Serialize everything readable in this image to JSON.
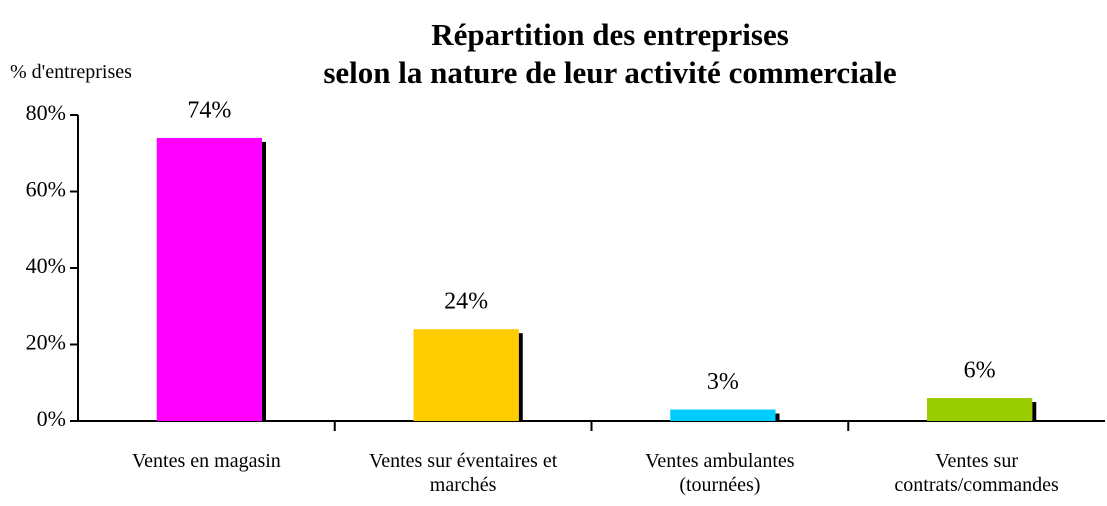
{
  "chart_data": {
    "type": "bar",
    "title": "Répartition des entreprises\nselon la nature de leur activité commerciale",
    "y_label": "% d'entreprises",
    "categories": [
      "Ventes en magasin",
      "Ventes sur éventaires et\nmarchés",
      "Ventes ambulantes\n(tournées)",
      "Ventes sur\ncontrats/commandes"
    ],
    "values": [
      74,
      24,
      3,
      6
    ],
    "value_labels": [
      "74%",
      "24%",
      "3%",
      "6%"
    ],
    "colors": [
      "#ff00ff",
      "#ffcc00",
      "#00ccff",
      "#99cc00"
    ],
    "ylim": [
      0,
      80
    ],
    "yticks": [
      {
        "value": 0,
        "label": "0%"
      },
      {
        "value": 20,
        "label": "20%"
      },
      {
        "value": 40,
        "label": "40%"
      },
      {
        "value": 60,
        "label": "60%"
      },
      {
        "value": 80,
        "label": "80%"
      }
    ],
    "grid": false
  }
}
